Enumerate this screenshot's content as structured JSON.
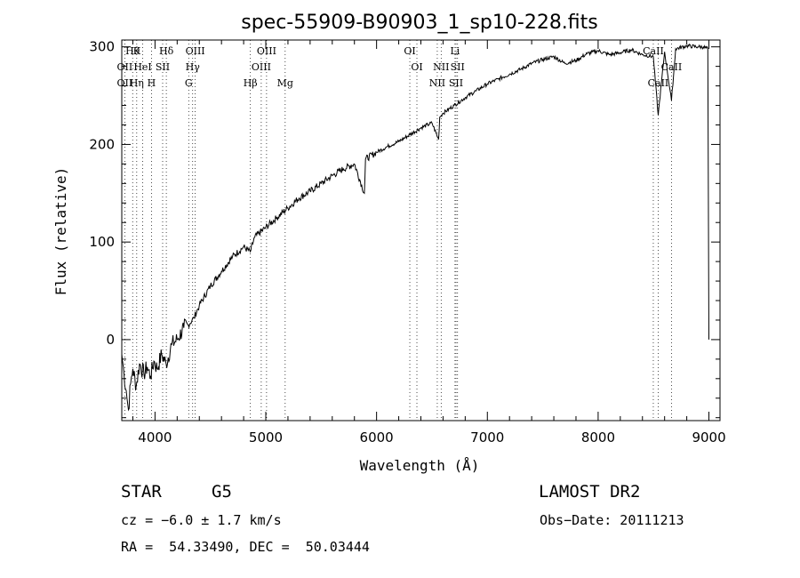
{
  "chart_data": {
    "type": "line",
    "title": "spec-55909-B90903_1_sp10-228.fits",
    "xlabel": "Wavelength (Å)",
    "ylabel": "Flux (relative)",
    "xlim": [
      3700,
      9100
    ],
    "ylim": [
      -83,
      307
    ],
    "xticks": [
      4000,
      5000,
      6000,
      7000,
      8000,
      9000
    ],
    "yticks": [
      0,
      100,
      200,
      300
    ],
    "series": [
      {
        "x": [
          3700,
          3720,
          3740,
          3760,
          3780,
          3800,
          3830,
          3860,
          3900,
          3930,
          3960,
          3990,
          4020,
          4060,
          4100,
          4150,
          4200,
          4260,
          4300,
          4350,
          4400,
          4500,
          4600,
          4700,
          4800,
          4860,
          4900,
          5000,
          5100,
          5200,
          5300,
          5400,
          5500,
          5600,
          5700,
          5800,
          5890,
          5900,
          6000,
          6100,
          6200,
          6300,
          6400,
          6500,
          6560,
          6570,
          6600,
          6700,
          6800,
          6900,
          7000,
          7100,
          7200,
          7300,
          7400,
          7500,
          7600,
          7700,
          7800,
          7900,
          8000,
          8100,
          8200,
          8300,
          8400,
          8498,
          8542,
          8600,
          8662,
          8700,
          8800,
          8900,
          8950,
          8990,
          9000
        ],
        "y": [
          -15,
          -35,
          -52,
          -72,
          -45,
          -30,
          -48,
          -25,
          -35,
          -28,
          -38,
          -22,
          -30,
          -15,
          -25,
          -5,
          0,
          12,
          15,
          22,
          35,
          55,
          70,
          85,
          95,
          90,
          105,
          115,
          125,
          135,
          145,
          152,
          160,
          168,
          175,
          180,
          150,
          185,
          192,
          198,
          203,
          210,
          217,
          222,
          205,
          228,
          232,
          240,
          248,
          255,
          262,
          267,
          272,
          277,
          283,
          287,
          290,
          283,
          286,
          293,
          296,
          292,
          294,
          297,
          292,
          290,
          230,
          295,
          245,
          298,
          301,
          300,
          300,
          298,
          0
        ]
      }
    ],
    "lines_top": [
      {
        "x": 3798,
        "label": "Hθ",
        "row": 0
      },
      {
        "x": 3835,
        "label": "K",
        "row": 0
      },
      {
        "x": 4102,
        "label": "Hδ",
        "row": 0
      },
      {
        "x": 4363,
        "label": "OIII",
        "row": 0
      },
      {
        "x": 5007,
        "label": "OIII",
        "row": 0
      },
      {
        "x": 6300,
        "label": "OI",
        "row": 0
      },
      {
        "x": 6708,
        "label": "Li",
        "row": 0
      },
      {
        "x": 8498,
        "label": "CaII",
        "row": 0
      },
      {
        "x": 3727,
        "label": "OII",
        "row": 1
      },
      {
        "x": 3889,
        "label": "HeI",
        "row": 1
      },
      {
        "x": 4069,
        "label": "SII",
        "row": 1
      },
      {
        "x": 4340,
        "label": "Hγ",
        "row": 1
      },
      {
        "x": 4959,
        "label": "OIII",
        "row": 1
      },
      {
        "x": 6364,
        "label": "OI",
        "row": 1
      },
      {
        "x": 6583,
        "label": "NII",
        "row": 1
      },
      {
        "x": 6731,
        "label": "SII",
        "row": 1
      },
      {
        "x": 8662,
        "label": "CaII",
        "row": 1
      },
      {
        "x": 3727,
        "label": "OII",
        "row": 2
      },
      {
        "x": 3835,
        "label": "Hη",
        "row": 2
      },
      {
        "x": 3968,
        "label": "H",
        "row": 2
      },
      {
        "x": 4304,
        "label": "G",
        "row": 2
      },
      {
        "x": 4861,
        "label": "Hβ",
        "row": 2
      },
      {
        "x": 5175,
        "label": "Mg",
        "row": 2
      },
      {
        "x": 6548,
        "label": "NII",
        "row": 2
      },
      {
        "x": 6717,
        "label": "SII",
        "row": 2
      },
      {
        "x": 8542,
        "label": "CaII",
        "row": 2
      }
    ]
  },
  "info": {
    "class_label": "STAR",
    "subclass": "G5",
    "survey": "LAMOST DR2",
    "cz": "cz = −6.0 ± 1.7 km/s",
    "obs_date": "Obs−Date: 20111213",
    "coords": "RA =  54.33490, DEC =  50.03444"
  }
}
